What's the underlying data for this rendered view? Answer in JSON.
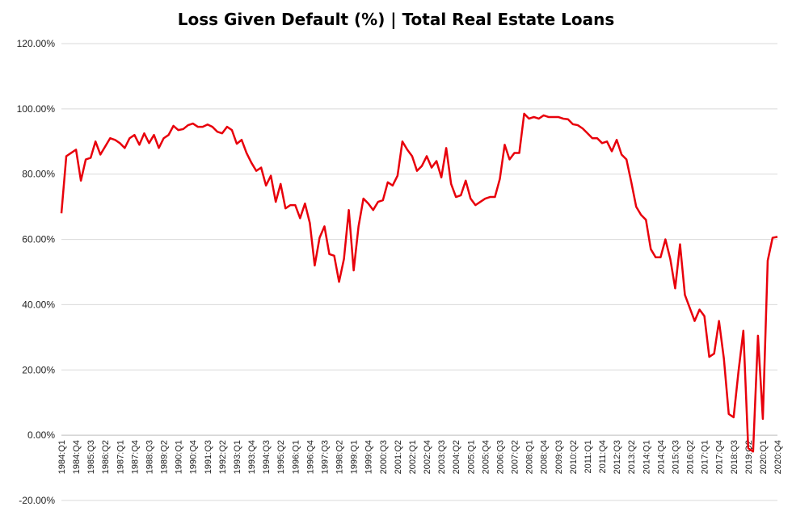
{
  "chart_data": {
    "type": "line",
    "title": "Loss Given Default (%) | Total Real Estate Loans",
    "xlabel": "",
    "ylabel": "",
    "ylim": [
      -20,
      120
    ],
    "y_ticks": [
      -20,
      0,
      20,
      40,
      60,
      80,
      100,
      120
    ],
    "y_tick_labels": [
      "-20.00%",
      "0.00%",
      "20.00%",
      "40.00%",
      "60.00%",
      "80.00%",
      "100.00%",
      "120.00%"
    ],
    "x_tick_labels": [
      "1984:Q1",
      "1984:Q4",
      "1985:Q3",
      "1986:Q2",
      "1987:Q1",
      "1987:Q4",
      "1988:Q3",
      "1989:Q2",
      "1990:Q1",
      "1990:Q4",
      "1991:Q3",
      "1992:Q2",
      "1993:Q1",
      "1993:Q4",
      "1994:Q3",
      "1995:Q2",
      "1996:Q1",
      "1996:Q4",
      "1997:Q3",
      "1998:Q2",
      "1999:Q1",
      "1999:Q4",
      "2000:Q3",
      "2001:Q2",
      "2002:Q1",
      "2002:Q4",
      "2003:Q3",
      "2004:Q2",
      "2005:Q1",
      "2005:Q4",
      "2006:Q3",
      "2007:Q2",
      "2008:Q1",
      "2008:Q4",
      "2009:Q3",
      "2010:Q2",
      "2011:Q1",
      "2011:Q4",
      "2012:Q3",
      "2013:Q2",
      "2014:Q1",
      "2014:Q4",
      "2015:Q3",
      "2016:Q2",
      "2017:Q1",
      "2017:Q4",
      "2018:Q3",
      "2019:Q2",
      "2020:Q1",
      "2020:Q4"
    ],
    "grid": true,
    "legend": "none",
    "line_color": "#e8000b",
    "series": [
      {
        "values": [
          68,
          85.5,
          86.5,
          87.5,
          78,
          84.5,
          85,
          90,
          86,
          88.5,
          91,
          90.5,
          89.5,
          88,
          91,
          92,
          89,
          92.5,
          89.5,
          92,
          88,
          91,
          92,
          94.8,
          93.5,
          93.8,
          95,
          95.5,
          94.5,
          94.5,
          95.2,
          94.5,
          93,
          92.5,
          94.5,
          93.5,
          89.3,
          90.5,
          86.5,
          83.5,
          81,
          82,
          76.5,
          79.5,
          71.5,
          77,
          69.5,
          70.5,
          70.5,
          66.5,
          71,
          65,
          52,
          60.5,
          64,
          55.5,
          55,
          47,
          54,
          69,
          50.5,
          64,
          72.5,
          71,
          69,
          71.5,
          72,
          77.5,
          76.5,
          79.5,
          90,
          87.5,
          85.5,
          81,
          82.5,
          85.5,
          82,
          84,
          79,
          88,
          77,
          73,
          73.5,
          78,
          72.5,
          70.5,
          71.5,
          72.5,
          73,
          73,
          78.5,
          89,
          84.5,
          86.5,
          86.5,
          98.5,
          97,
          97.5,
          97,
          98,
          97.5,
          97.5,
          97.5,
          97,
          96.8,
          95.3,
          95,
          94,
          92.5,
          91,
          91,
          89.5,
          90,
          87,
          90.5,
          86,
          84.5,
          77.5,
          70,
          67.5,
          66,
          57,
          54.5,
          54.5,
          60,
          54,
          45,
          58.5,
          43,
          39,
          35,
          38.5,
          36.5,
          24,
          25,
          35,
          23.5,
          6.5,
          5.5,
          19.5,
          32,
          -4,
          -5,
          30.5,
          5,
          53.5,
          60.5,
          60.8
        ]
      }
    ]
  }
}
